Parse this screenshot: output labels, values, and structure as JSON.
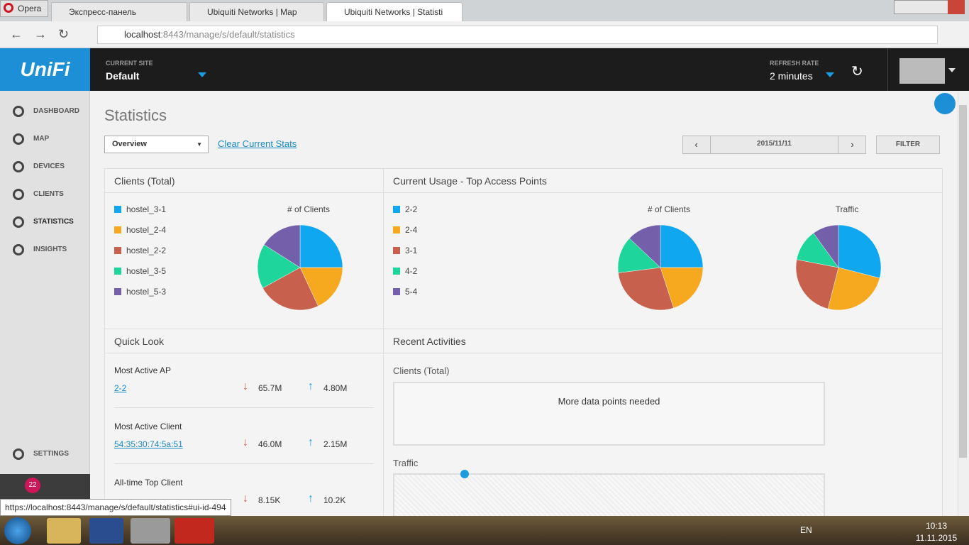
{
  "browser": {
    "tabs": [
      "Opera",
      "Экспресс-панель",
      "Ubiquiti Networks | Map",
      "Ubiquiti Networks | Statisti"
    ],
    "url_host": "localhost",
    "url_rest": ":8443/manage/s/default/statistics"
  },
  "header": {
    "logo": "UniFi",
    "site_label": "CURRENT SITE",
    "site": "Default",
    "refresh_label": "REFRESH RATE",
    "refresh": "2 minutes"
  },
  "sidebar": {
    "items": [
      "DASHBOARD",
      "MAP",
      "DEVICES",
      "CLIENTS",
      "STATISTICS",
      "INSIGHTS"
    ],
    "settings": "SETTINGS",
    "badge": "22"
  },
  "page": {
    "title": "Statistics",
    "view": "Overview",
    "clear": "Clear Current Stats",
    "date": "2015/11/11",
    "filter": "FILTER"
  },
  "panels": {
    "clients": "Clients (Total)",
    "usage": "Current Usage - Top Access Points",
    "quick_look": "Quick Look",
    "recent": "Recent Activities"
  },
  "chart_data": [
    {
      "type": "pie",
      "title": "# of Clients",
      "categories": [
        "hostel_3-1",
        "hostel_2-4",
        "hostel_2-2",
        "hostel_3-5",
        "hostel_5-3"
      ],
      "colors": [
        "#0fa7ef",
        "#f6a81e",
        "#c8604e",
        "#1ed59b",
        "#7460aa"
      ],
      "values": [
        25,
        18,
        24,
        17,
        16
      ]
    },
    {
      "type": "pie",
      "title": "# of Clients",
      "categories": [
        "2-2",
        "2-4",
        "3-1",
        "4-2",
        "5-4"
      ],
      "colors": [
        "#0fa7ef",
        "#f6a81e",
        "#c8604e",
        "#1ed59b",
        "#7460aa"
      ],
      "values": [
        25,
        20,
        28,
        14,
        13
      ]
    },
    {
      "type": "pie",
      "title": "Traffic",
      "colors": [
        "#0fa7ef",
        "#f6a81e",
        "#c8604e",
        "#1ed59b",
        "#7460aa"
      ],
      "values": [
        29,
        25,
        24,
        12,
        10
      ]
    }
  ],
  "quick_look": [
    {
      "label": "Most Active AP",
      "name": "2-2",
      "down": "65.7M",
      "up": "4.80M"
    },
    {
      "label": "Most Active Client",
      "name": "54:35:30:74:5a:51",
      "down": "46.0M",
      "up": "2.15M"
    },
    {
      "label": "All-time Top Client",
      "down": "8.15K",
      "up": "10.2K"
    }
  ],
  "recent": {
    "clients_label": "Clients (Total)",
    "message": "More data points needed",
    "traffic_label": "Traffic"
  },
  "status_url": "https://localhost:8443/manage/s/default/statistics#ui-id-494",
  "taskbar": {
    "lang": "EN",
    "time": "10:13",
    "date": "11.11.2015"
  }
}
